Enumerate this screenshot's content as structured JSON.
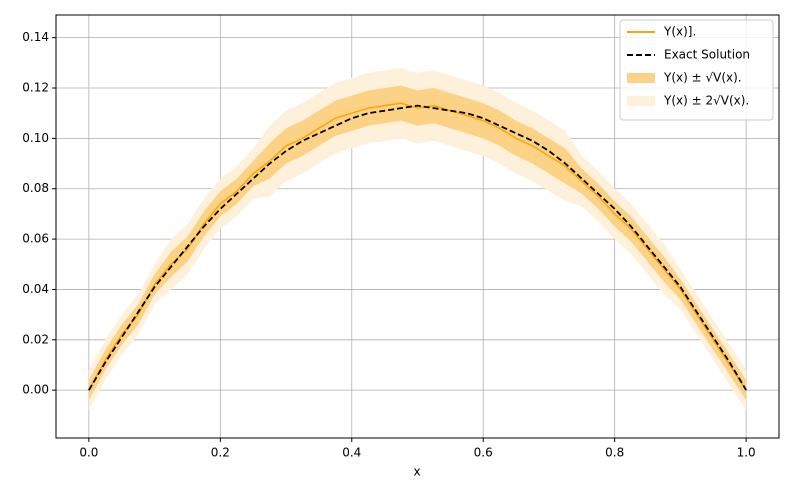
{
  "chart_data": {
    "type": "line",
    "xlabel": "x",
    "x": [
      0,
      0.025,
      0.05,
      0.075,
      0.1,
      0.125,
      0.15,
      0.175,
      0.2,
      0.225,
      0.25,
      0.275,
      0.3,
      0.325,
      0.35,
      0.375,
      0.4,
      0.425,
      0.45,
      0.475,
      0.5,
      0.525,
      0.55,
      0.575,
      0.6,
      0.625,
      0.65,
      0.675,
      0.7,
      0.725,
      0.75,
      0.775,
      0.8,
      0.825,
      0.85,
      0.875,
      0.9,
      0.925,
      0.95,
      0.975,
      1
    ],
    "series": [
      {
        "name": "Y(x)].",
        "kind": "line",
        "color": "#ffa500",
        "values": [
          0,
          0.012,
          0.022,
          0.03,
          0.042,
          0.05,
          0.056,
          0.066,
          0.074,
          0.079,
          0.086,
          0.091,
          0.097,
          0.1,
          0.104,
          0.108,
          0.11,
          0.112,
          0.113,
          0.114,
          0.112,
          0.113,
          0.111,
          0.109,
          0.107,
          0.104,
          0.1,
          0.097,
          0.093,
          0.089,
          0.083,
          0.077,
          0.07,
          0.064,
          0.056,
          0.048,
          0.04,
          0.03,
          0.02,
          0.01,
          0
        ]
      },
      {
        "name": "Exact Solution",
        "kind": "dashed",
        "color": "#000000",
        "values": [
          0,
          0.011,
          0.021,
          0.031,
          0.041,
          0.049,
          0.057,
          0.065,
          0.072,
          0.078,
          0.084,
          0.09,
          0.095,
          0.099,
          0.102,
          0.105,
          0.108,
          0.11,
          0.111,
          0.112,
          0.113,
          0.112,
          0.111,
          0.11,
          0.108,
          0.105,
          0.102,
          0.099,
          0.095,
          0.09,
          0.084,
          0.078,
          0.072,
          0.065,
          0.057,
          0.049,
          0.041,
          0.031,
          0.021,
          0.011,
          0
        ]
      },
      {
        "name": "Y(x) ± √V(x).",
        "kind": "band",
        "color": "#fcd287",
        "lower": [
          -0.004,
          0.008,
          0.018,
          0.026,
          0.038,
          0.045,
          0.051,
          0.061,
          0.069,
          0.074,
          0.081,
          0.084,
          0.09,
          0.093,
          0.097,
          0.101,
          0.103,
          0.105,
          0.106,
          0.107,
          0.105,
          0.106,
          0.104,
          0.102,
          0.1,
          0.097,
          0.093,
          0.09,
          0.086,
          0.082,
          0.078,
          0.072,
          0.065,
          0.059,
          0.051,
          0.043,
          0.036,
          0.026,
          0.016,
          0.006,
          -0.004
        ],
        "upper": [
          0.004,
          0.016,
          0.026,
          0.034,
          0.046,
          0.055,
          0.061,
          0.071,
          0.079,
          0.084,
          0.091,
          0.098,
          0.104,
          0.107,
          0.111,
          0.115,
          0.117,
          0.119,
          0.12,
          0.121,
          0.119,
          0.12,
          0.118,
          0.116,
          0.114,
          0.111,
          0.107,
          0.104,
          0.1,
          0.096,
          0.088,
          0.082,
          0.075,
          0.069,
          0.061,
          0.053,
          0.044,
          0.034,
          0.024,
          0.014,
          0.004
        ]
      },
      {
        "name": "Y(x) ± 2√V(x).",
        "kind": "band",
        "color": "#fef1dc",
        "lower": [
          -0.008,
          0.004,
          0.014,
          0.022,
          0.034,
          0.04,
          0.046,
          0.056,
          0.064,
          0.069,
          0.076,
          0.077,
          0.083,
          0.086,
          0.09,
          0.094,
          0.096,
          0.098,
          0.099,
          0.1,
          0.098,
          0.099,
          0.097,
          0.095,
          0.093,
          0.09,
          0.086,
          0.083,
          0.079,
          0.075,
          0.073,
          0.067,
          0.06,
          0.054,
          0.046,
          0.038,
          0.032,
          0.022,
          0.012,
          0.002,
          -0.008
        ],
        "upper": [
          0.008,
          0.02,
          0.03,
          0.038,
          0.05,
          0.06,
          0.066,
          0.076,
          0.084,
          0.089,
          0.096,
          0.105,
          0.111,
          0.114,
          0.118,
          0.122,
          0.124,
          0.126,
          0.127,
          0.128,
          0.126,
          0.127,
          0.125,
          0.123,
          0.121,
          0.118,
          0.114,
          0.111,
          0.107,
          0.103,
          0.093,
          0.087,
          0.08,
          0.074,
          0.066,
          0.058,
          0.048,
          0.038,
          0.028,
          0.018,
          0.008
        ]
      }
    ],
    "xlim": [
      -0.05,
      1.05
    ],
    "ylim": [
      -0.019,
      0.149
    ],
    "xticks": [
      {
        "value": 0,
        "label": "0.0"
      },
      0.2,
      0.4,
      0.6,
      0.8,
      {
        "value": 1,
        "label": "1.0"
      }
    ],
    "yticks": [
      {
        "value": 0,
        "label": "0.00"
      },
      {
        "value": 0.02,
        "label": "0.02"
      },
      {
        "value": 0.04,
        "label": "0.04"
      },
      {
        "value": 0.06,
        "label": "0.06"
      },
      {
        "value": 0.08,
        "label": "0.08"
      },
      {
        "value": 0.1,
        "label": "0.10"
      },
      {
        "value": 0.12,
        "label": "0.12"
      },
      {
        "value": 0.14,
        "label": "0.14"
      }
    ],
    "grid": true,
    "legend": "upper right"
  }
}
